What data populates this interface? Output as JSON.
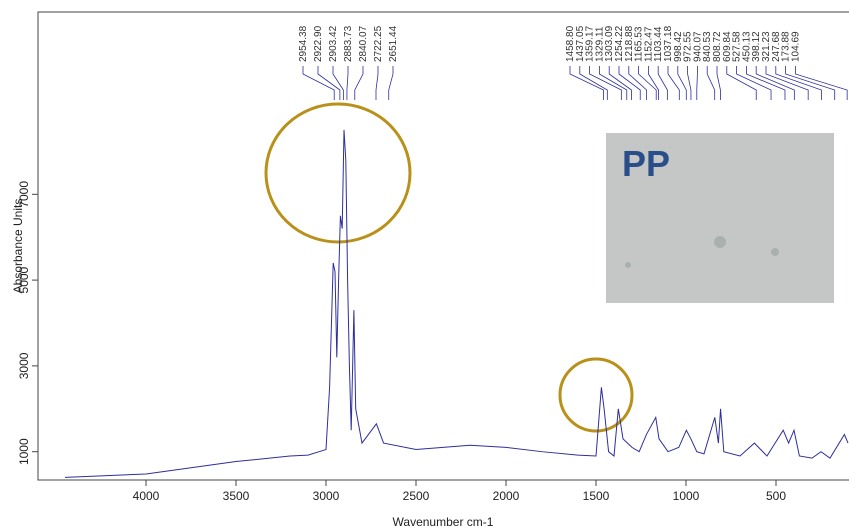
{
  "chart_data": {
    "type": "line",
    "x_label": "Wavenumber cm-1",
    "y_label": "Absorbance Units",
    "inset_label": "PP",
    "xlim": [
      4600,
      95
    ],
    "ylim": [
      340,
      11250
    ],
    "xticks": [
      4000,
      3500,
      3000,
      2500,
      2000,
      1500,
      1000,
      500
    ],
    "yticks": [
      1000,
      3000,
      5000,
      7000
    ],
    "peak_labels": [
      [
        "2954.38",
        "2922.90",
        "2903.42",
        "2883.73",
        "2840.07",
        "2722.25",
        "2651.44"
      ],
      [
        "1458.80",
        "1437.05",
        "1359.17",
        "1329.11",
        "1303.09",
        "1254.22",
        "1218.88",
        "1165.53",
        "1152.47",
        "1103.44",
        "1037.18",
        "998.42",
        "972.55",
        "940.07",
        "840.53",
        "808.72",
        "609.84",
        "527.58",
        "450.13",
        "398.12",
        "321.23",
        "247.68",
        "173.88",
        "104.69"
      ]
    ],
    "series": [
      {
        "color": "#2e2e9e",
        "x": [
          4450,
          4000,
          3500,
          3200,
          3100,
          3000,
          2980,
          2960,
          2950,
          2940,
          2930,
          2920,
          2910,
          2900,
          2890,
          2880,
          2870,
          2860,
          2845,
          2835,
          2800,
          2720,
          2680,
          2500,
          2200,
          2000,
          1800,
          1600,
          1500,
          1470,
          1455,
          1430,
          1400,
          1376,
          1350,
          1300,
          1260,
          1220,
          1168,
          1150,
          1100,
          1040,
          998,
          973,
          940,
          900,
          840,
          820,
          808,
          790,
          700,
          620,
          550,
          460,
          430,
          400,
          370,
          300,
          250,
          200,
          120,
          100
        ],
        "values": [
          400,
          480,
          770,
          900,
          920,
          1050,
          2500,
          5400,
          5200,
          3200,
          5000,
          6500,
          6200,
          8500,
          7800,
          5000,
          3000,
          1500,
          4300,
          2000,
          1200,
          1650,
          1200,
          1050,
          1150,
          1100,
          1000,
          920,
          900,
          2500,
          2000,
          1000,
          900,
          2000,
          1300,
          1100,
          1000,
          1400,
          1800,
          1300,
          1000,
          1100,
          1500,
          1300,
          1000,
          950,
          1800,
          1200,
          2000,
          1000,
          900,
          1200,
          900,
          1500,
          1200,
          1500,
          900,
          850,
          1000,
          850,
          1400,
          1200
        ]
      }
    ]
  }
}
